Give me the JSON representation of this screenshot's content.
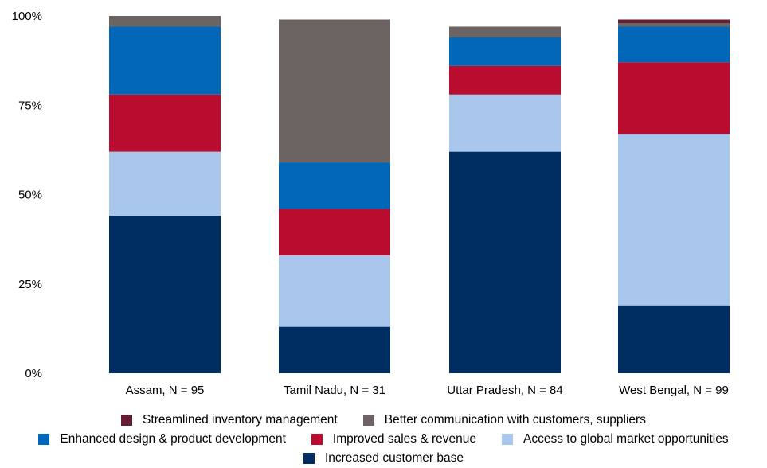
{
  "chart_data": {
    "type": "bar",
    "stacked": true,
    "percent_scale": true,
    "categories": [
      "Assam, N = 95",
      "Tamil Nadu, N = 31",
      "Uttar Pradesh, N = 84",
      "West Bengal, N = 99"
    ],
    "y_ticks": [
      "0%",
      "25%",
      "50%",
      "75%",
      "100%"
    ],
    "ylim": [
      0,
      100
    ],
    "grid": false,
    "legend_position": "bottom",
    "series": [
      {
        "name": "Increased customer base",
        "color": "#002d62",
        "values": [
          44,
          13,
          62,
          19
        ]
      },
      {
        "name": "Access to global market opportunities",
        "color": "#a9c6ec",
        "values": [
          18,
          20,
          16,
          48
        ]
      },
      {
        "name": "Improved sales & revenue",
        "color": "#ba0c2f",
        "values": [
          16,
          13,
          8,
          20
        ]
      },
      {
        "name": "Enhanced design & product development",
        "color": "#0067b9",
        "values": [
          19,
          13,
          8,
          10
        ]
      },
      {
        "name": "Better communication with customers, suppliers",
        "color": "#6c6463",
        "values": [
          3,
          40,
          3,
          1
        ]
      },
      {
        "name": "Streamlined inventory management",
        "color": "#651d32",
        "values": [
          0,
          0,
          0,
          1
        ]
      }
    ],
    "legend_rows": [
      [
        5,
        4
      ],
      [
        3,
        2,
        1
      ],
      [
        0
      ]
    ]
  }
}
